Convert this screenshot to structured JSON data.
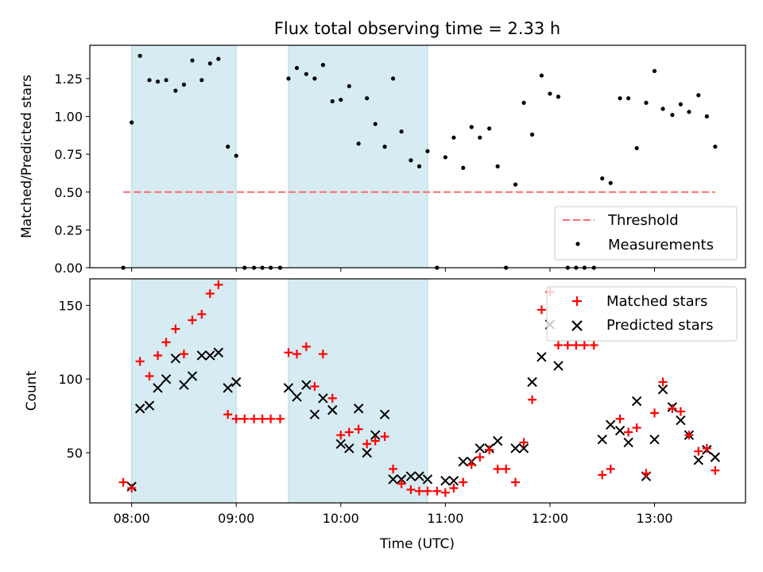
{
  "chart_data": [
    {
      "type": "scatter",
      "title": "Flux total observing time = 2.33 h",
      "xlabel": "",
      "ylabel": "Matched/Predicted stars",
      "xlim_hours": [
        7.6,
        13.87
      ],
      "ylim": [
        0,
        1.47
      ],
      "yticks": [
        0,
        0.25,
        0.5,
        0.75,
        1.0,
        1.25
      ],
      "ytick_labels": [
        "0.00",
        "0.25",
        "0.50",
        "0.75",
        "1.00",
        "1.25"
      ],
      "grid": false,
      "legend_position": "lower-right",
      "observing_windows": [
        [
          8.0,
          9.0
        ],
        [
          9.5,
          10.83
        ]
      ],
      "window_color": "#add8e6",
      "threshold": {
        "name": "Threshold",
        "value": 0.5,
        "x_range": [
          7.92,
          13.58
        ],
        "color": "#ff6b6b",
        "style": "dashed"
      },
      "series": [
        {
          "name": "Measurements",
          "color": "#000000",
          "marker": "dot",
          "x": [
            7.92,
            8.0,
            8.08,
            8.17,
            8.25,
            8.33,
            8.42,
            8.5,
            8.58,
            8.67,
            8.75,
            8.83,
            8.92,
            9.0,
            9.08,
            9.17,
            9.25,
            9.33,
            9.42,
            9.5,
            9.58,
            9.67,
            9.75,
            9.83,
            9.92,
            10.0,
            10.08,
            10.17,
            10.25,
            10.33,
            10.42,
            10.5,
            10.58,
            10.67,
            10.75,
            10.83,
            10.92,
            11.0,
            11.08,
            11.17,
            11.25,
            11.33,
            11.42,
            11.5,
            11.58,
            11.67,
            11.75,
            11.83,
            11.92,
            12.0,
            12.08,
            12.17,
            12.25,
            12.33,
            12.42,
            12.5,
            12.58,
            12.67,
            12.75,
            12.83,
            12.92,
            13.0,
            13.08,
            13.17,
            13.25,
            13.33,
            13.42,
            13.5,
            13.58
          ],
          "y": [
            0.0,
            0.96,
            1.4,
            1.24,
            1.23,
            1.24,
            1.17,
            1.21,
            1.37,
            1.24,
            1.35,
            1.38,
            0.8,
            0.74,
            0.0,
            0.0,
            0.0,
            0.0,
            0.0,
            1.25,
            1.32,
            1.28,
            1.25,
            1.34,
            1.1,
            1.11,
            1.2,
            0.82,
            1.12,
            0.95,
            0.8,
            1.25,
            0.9,
            0.71,
            0.67,
            0.77,
            0.0,
            0.73,
            0.86,
            0.66,
            0.93,
            0.86,
            0.92,
            0.67,
            0.0,
            0.55,
            1.09,
            0.88,
            1.27,
            1.15,
            1.13,
            0.0,
            0.0,
            0.0,
            0.0,
            0.59,
            0.56,
            1.12,
            1.12,
            0.79,
            1.09,
            1.3,
            1.05,
            1.01,
            1.08,
            1.03,
            1.14,
            1.0,
            0.8
          ]
        }
      ]
    },
    {
      "type": "scatter",
      "title": "",
      "xlabel": "Time (UTC)",
      "ylabel": "Count",
      "xlim_hours": [
        7.6,
        13.87
      ],
      "ylim": [
        16,
        168
      ],
      "yticks": [
        50,
        100,
        150
      ],
      "ytick_labels": [
        "50",
        "100",
        "150"
      ],
      "xticks_hours": [
        8,
        9,
        10,
        11,
        12,
        13
      ],
      "xtick_labels": [
        "08:00",
        "09:00",
        "10:00",
        "11:00",
        "12:00",
        "13:00"
      ],
      "grid": false,
      "legend_position": "upper-right",
      "observing_windows": [
        [
          8.0,
          9.0
        ],
        [
          9.5,
          10.83
        ]
      ],
      "window_color": "#add8e6",
      "series": [
        {
          "name": "Matched stars",
          "color": "#ff0000",
          "marker": "plus",
          "x": [
            7.92,
            8.0,
            8.08,
            8.17,
            8.25,
            8.33,
            8.42,
            8.5,
            8.58,
            8.67,
            8.75,
            8.83,
            8.92,
            9.0,
            9.08,
            9.17,
            9.25,
            9.33,
            9.42,
            9.5,
            9.58,
            9.67,
            9.75,
            9.83,
            9.92,
            10.0,
            10.08,
            10.17,
            10.25,
            10.33,
            10.42,
            10.5,
            10.58,
            10.67,
            10.75,
            10.83,
            10.92,
            11.0,
            11.08,
            11.17,
            11.25,
            11.33,
            11.42,
            11.5,
            11.58,
            11.67,
            11.75,
            11.83,
            11.92,
            12.0,
            12.08,
            12.17,
            12.25,
            12.33,
            12.42,
            12.5,
            12.58,
            12.67,
            12.75,
            12.83,
            12.92,
            13.0,
            13.08,
            13.17,
            13.25,
            13.33,
            13.42,
            13.5,
            13.58
          ],
          "y": [
            30,
            26,
            112,
            102,
            116,
            125,
            134,
            117,
            140,
            144,
            158,
            164,
            76,
            73,
            73,
            73,
            73,
            73,
            73,
            118,
            117,
            122,
            95,
            117,
            87,
            62,
            64,
            66,
            56,
            58,
            61,
            39,
            29,
            25,
            24,
            24,
            24,
            23,
            26,
            30,
            42,
            47,
            52,
            39,
            39,
            30,
            57,
            86,
            147,
            159,
            123,
            123,
            123,
            123,
            123,
            35,
            39,
            73,
            64,
            67,
            36,
            77,
            98,
            80,
            78,
            62,
            51,
            53,
            38
          ]
        },
        {
          "name": "Predicted stars",
          "color": "#000000",
          "marker": "x",
          "x": [
            8.0,
            8.08,
            8.17,
            8.25,
            8.33,
            8.42,
            8.5,
            8.58,
            8.67,
            8.75,
            8.83,
            8.92,
            9.0,
            9.5,
            9.58,
            9.67,
            9.75,
            9.83,
            9.92,
            10.0,
            10.08,
            10.17,
            10.25,
            10.33,
            10.42,
            10.5,
            10.58,
            10.67,
            10.75,
            10.83,
            11.0,
            11.08,
            11.17,
            11.25,
            11.33,
            11.42,
            11.5,
            11.67,
            11.75,
            11.83,
            11.92,
            12.0,
            12.08,
            12.5,
            12.58,
            12.67,
            12.75,
            12.83,
            12.92,
            13.0,
            13.08,
            13.17,
            13.25,
            13.33,
            13.42,
            13.5,
            13.58
          ],
          "y": [
            27,
            80,
            82,
            94,
            100,
            114,
            96,
            102,
            116,
            116,
            118,
            94,
            98,
            94,
            88,
            96,
            76,
            87,
            79,
            56,
            53,
            80,
            50,
            62,
            76,
            32,
            32,
            34,
            34,
            32,
            31,
            31,
            44,
            44,
            53,
            53,
            58,
            53,
            53,
            98,
            115,
            137,
            109,
            59,
            69,
            65,
            57,
            85,
            34,
            59,
            93,
            81,
            72,
            62,
            45,
            52,
            47
          ]
        }
      ]
    }
  ]
}
